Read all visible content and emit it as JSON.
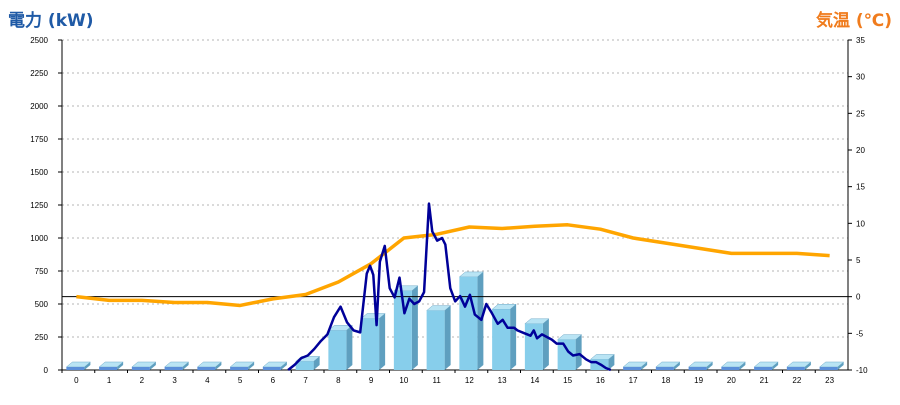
{
  "chart_data": {
    "type": "bar",
    "title": "",
    "ylabel": "電力 (kW)",
    "y2label": "気温 (℃)",
    "ylim": [
      0,
      2500
    ],
    "y2lim": [
      -10,
      35
    ],
    "yticks": [
      0,
      250,
      500,
      750,
      1000,
      1250,
      1500,
      1750,
      2000,
      2250,
      2500
    ],
    "y2ticks": [
      -10,
      -5,
      0,
      5,
      10,
      15,
      20,
      25,
      30,
      35
    ],
    "categories": [
      "0",
      "1",
      "2",
      "3",
      "4",
      "5",
      "6",
      "7",
      "8",
      "9",
      "10",
      "11",
      "12",
      "13",
      "14",
      "15",
      "16",
      "17",
      "18",
      "19",
      "20",
      "21",
      "22",
      "23"
    ],
    "grid": true,
    "legend": "none",
    "colors": {
      "bar": "#87ceeb",
      "power_line": "#000099",
      "temperature_line": "#ffa500",
      "left_title": "#1f5aa6",
      "right_title": "#f07c1d"
    },
    "series": [
      {
        "kind": "bar",
        "axis": "left",
        "values": [
          0,
          0,
          0,
          0,
          0,
          0,
          0,
          65,
          300,
          390,
          600,
          450,
          705,
          460,
          350,
          230,
          80,
          0,
          0,
          0,
          0,
          0,
          0,
          0
        ]
      },
      {
        "kind": "line",
        "axis": "left",
        "x": [
          6.6,
          6.8,
          7.0,
          7.2,
          7.4,
          7.6,
          7.8,
          8.0,
          8.2,
          8.4,
          8.6,
          8.8,
          9.0,
          9.1,
          9.2,
          9.3,
          9.4,
          9.55,
          9.7,
          9.85,
          10.0,
          10.15,
          10.3,
          10.45,
          10.6,
          10.75,
          10.9,
          11.0,
          11.15,
          11.3,
          11.4,
          11.55,
          11.7,
          11.85,
          12.0,
          12.15,
          12.3,
          12.5,
          12.65,
          12.8,
          13.0,
          13.15,
          13.3,
          13.5,
          13.6,
          13.8,
          14.0,
          14.1,
          14.2,
          14.35,
          14.5,
          14.65,
          14.8,
          15.0,
          15.15,
          15.3,
          15.5,
          15.7,
          15.85,
          16.0,
          16.15,
          16.3,
          16.45
        ],
        "values": [
          0,
          40,
          90,
          110,
          160,
          220,
          270,
          400,
          480,
          360,
          300,
          285,
          730,
          790,
          720,
          340,
          820,
          940,
          620,
          550,
          700,
          430,
          540,
          500,
          520,
          590,
          1260,
          1050,
          980,
          1000,
          950,
          620,
          520,
          560,
          480,
          570,
          420,
          380,
          500,
          440,
          350,
          380,
          320,
          320,
          300,
          280,
          260,
          300,
          240,
          270,
          250,
          230,
          200,
          200,
          140,
          110,
          120,
          80,
          60,
          60,
          40,
          15,
          0
        ]
      },
      {
        "kind": "line",
        "axis": "right",
        "values": [
          0,
          -0.5,
          -0.5,
          -0.8,
          -0.8,
          -1.2,
          -0.3,
          0.3,
          2.0,
          4.5,
          8.0,
          8.5,
          9.5,
          9.3,
          9.6,
          9.8,
          9.2,
          8.0,
          7.3,
          6.6,
          5.9,
          5.9,
          5.9,
          5.6
        ]
      }
    ]
  }
}
